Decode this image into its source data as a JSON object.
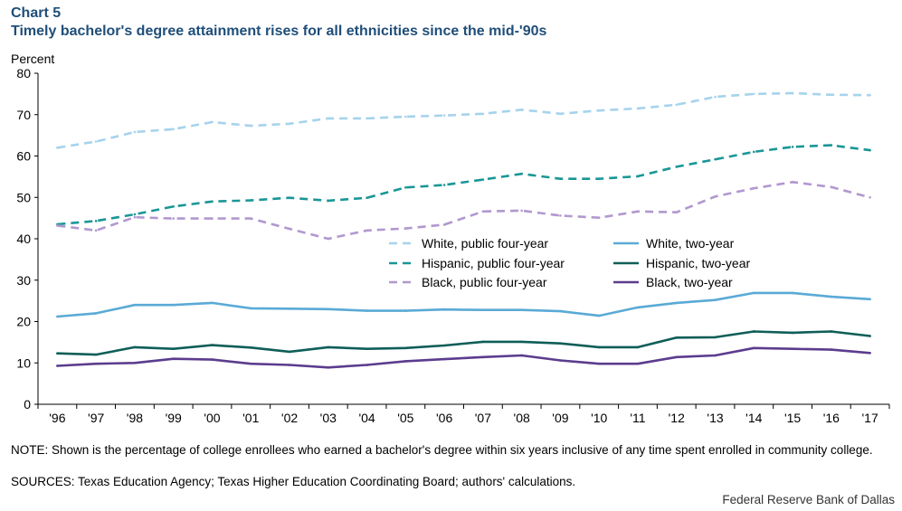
{
  "header": {
    "chart_label": "Chart 5",
    "title": "Timely bachelor's degree attainment rises for all ethnicities since the mid-'90s"
  },
  "footer": {
    "note": "NOTE: Shown is the percentage of college enrollees who earned a bachelor's degree within six years inclusive of any time spent enrolled in community college.",
    "sources": "SOURCES: Texas Education Agency; Texas Higher Education Coordinating Board; authors' calculations.",
    "credit": "Federal Reserve Bank of Dallas"
  },
  "chart_data": {
    "type": "line",
    "ylabel": "Percent",
    "ylim": [
      0,
      80
    ],
    "yticks": [
      0,
      10,
      20,
      30,
      40,
      50,
      60,
      70,
      80
    ],
    "categories": [
      "'96",
      "'97",
      "'98",
      "'99",
      "'00",
      "'01",
      "'02",
      "'03",
      "'04",
      "'05",
      "'06",
      "'07",
      "'08",
      "'09",
      "'10",
      "'11",
      "'12",
      "'13",
      "'14",
      "'15",
      "'16",
      "'17"
    ],
    "grid": false,
    "legend_position": "center-right",
    "series": [
      {
        "name": "White, public four-year",
        "color": "#a6d3ec",
        "dashed": true,
        "values": [
          62,
          63.5,
          65.8,
          66.5,
          68.2,
          67.3,
          67.8,
          69.1,
          69.1,
          69.5,
          69.8,
          70.2,
          71.2,
          70.2,
          71,
          71.5,
          72.4,
          74.3,
          75,
          75.2,
          74.8,
          74.7
        ]
      },
      {
        "name": "White, two-year",
        "color": "#5aaad6",
        "dashed": false,
        "values": [
          21.2,
          22,
          24,
          24,
          24.5,
          23.2,
          23.1,
          23,
          22.6,
          22.6,
          22.9,
          22.8,
          22.8,
          22.5,
          21.4,
          23.4,
          24.5,
          25.2,
          26.9,
          26.9,
          26,
          25.4
        ]
      },
      {
        "name": "Hispanic, public four-year",
        "color": "#1a9696",
        "dashed": true,
        "values": [
          43.5,
          44.3,
          45.9,
          47.8,
          49,
          49.3,
          49.9,
          49.2,
          49.9,
          52.4,
          53,
          54.3,
          55.7,
          54.5,
          54.5,
          55.1,
          57.4,
          59.2,
          61,
          62.2,
          62.6,
          61.4
        ]
      },
      {
        "name": "Hispanic, two-year",
        "color": "#0f5e58",
        "dashed": false,
        "values": [
          12.3,
          12,
          13.8,
          13.4,
          14.3,
          13.7,
          12.7,
          13.8,
          13.4,
          13.6,
          14.2,
          15.1,
          15.1,
          14.7,
          13.8,
          13.8,
          16.1,
          16.2,
          17.6,
          17.3,
          17.6,
          16.5
        ]
      },
      {
        "name": "Black, public four-year",
        "color": "#b198cf",
        "dashed": true,
        "values": [
          43.2,
          42,
          45.2,
          44.9,
          44.9,
          44.9,
          42.4,
          40,
          42,
          42.5,
          43.4,
          46.6,
          46.8,
          45.6,
          45.1,
          46.6,
          46.4,
          50.2,
          52.2,
          53.7,
          52.5,
          50
        ]
      },
      {
        "name": "Black, two-year",
        "color": "#5c3c8e",
        "dashed": false,
        "values": [
          9.3,
          9.8,
          10,
          11,
          10.8,
          9.8,
          9.5,
          8.9,
          9.5,
          10.4,
          10.9,
          11.4,
          11.8,
          10.6,
          9.8,
          9.8,
          11.4,
          11.8,
          13.6,
          13.4,
          13.2,
          12.4
        ]
      }
    ]
  }
}
